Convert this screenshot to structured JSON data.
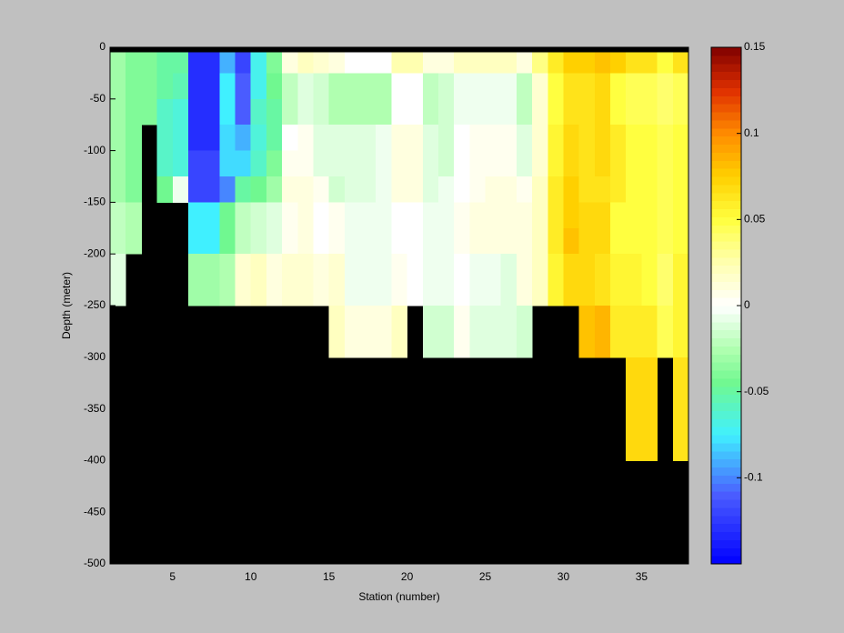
{
  "chart_data": {
    "type": "heatmap",
    "xlabel": "Station (number)",
    "ylabel": "Depth (meter)",
    "xlim": [
      1,
      38
    ],
    "ylim": [
      -500,
      0
    ],
    "xticks": [
      5,
      10,
      15,
      20,
      25,
      30,
      35
    ],
    "yticks": [
      0,
      -50,
      -100,
      -150,
      -200,
      -250,
      -300,
      -350,
      -400,
      -450,
      -500
    ],
    "x_edges": [
      1,
      2,
      3,
      4,
      5,
      6,
      7,
      8,
      9,
      10,
      11,
      12,
      13,
      14,
      15,
      16,
      17,
      18,
      19,
      20,
      21,
      22,
      23,
      24,
      25,
      26,
      27,
      28,
      29,
      30,
      31,
      32,
      33,
      34,
      35,
      36,
      37,
      38
    ],
    "y_edges": [
      -5,
      -25,
      -50,
      -75,
      -100,
      -125,
      -150,
      -175,
      -200,
      -225,
      -250,
      -275,
      -300,
      -325,
      -350,
      -375,
      -400
    ],
    "clim": [
      -0.15,
      0.15
    ],
    "cticks": [
      -0.1,
      -0.05,
      0,
      0.05,
      0.1,
      0.15
    ],
    "colormap": [
      {
        "value": -0.15,
        "color": "#0000ff"
      },
      {
        "value": -0.11,
        "color": "#4a5cff"
      },
      {
        "value": -0.075,
        "color": "#40f0ff"
      },
      {
        "value": -0.045,
        "color": "#70f890"
      },
      {
        "value": -0.025,
        "color": "#b0ffb0"
      },
      {
        "value": 0,
        "color": "#ffffff"
      },
      {
        "value": 0.025,
        "color": "#ffffb0"
      },
      {
        "value": 0.05,
        "color": "#ffff40"
      },
      {
        "value": 0.075,
        "color": "#ffd000"
      },
      {
        "value": 0.1,
        "color": "#ff8c00"
      },
      {
        "value": 0.125,
        "color": "#e03000"
      },
      {
        "value": 0.15,
        "color": "#800000"
      }
    ],
    "missing_color": "#000000",
    "z": [
      [
        -0.03,
        -0.03,
        -0.03,
        -0.03,
        -0.03,
        -0.03,
        -0.02,
        -0.02,
        -0.01,
        -0.01,
        null,
        null,
        null,
        null,
        null,
        null
      ],
      [
        -0.04,
        -0.04,
        -0.04,
        -0.04,
        -0.04,
        -0.04,
        -0.025,
        -0.025,
        null,
        null,
        null,
        null,
        null,
        null,
        null,
        null
      ],
      [
        -0.04,
        -0.04,
        -0.04,
        null,
        null,
        null,
        null,
        null,
        null,
        null,
        null,
        null,
        null,
        null,
        null,
        null
      ],
      [
        -0.05,
        -0.05,
        -0.06,
        -0.06,
        -0.06,
        -0.045,
        null,
        null,
        null,
        null,
        null,
        null,
        null,
        null,
        null,
        null
      ],
      [
        -0.05,
        -0.055,
        -0.065,
        -0.065,
        -0.065,
        -0.005,
        null,
        null,
        null,
        null,
        null,
        null,
        null,
        null,
        null,
        null
      ],
      [
        -0.13,
        -0.13,
        -0.13,
        -0.13,
        -0.12,
        -0.12,
        -0.075,
        -0.075,
        -0.03,
        -0.03,
        null,
        null,
        null,
        null,
        null,
        null
      ],
      [
        -0.13,
        -0.13,
        -0.13,
        -0.13,
        -0.12,
        -0.12,
        -0.075,
        -0.075,
        -0.03,
        -0.03,
        null,
        null,
        null,
        null,
        null,
        null
      ],
      [
        -0.09,
        -0.075,
        -0.075,
        -0.08,
        -0.08,
        -0.1,
        -0.045,
        -0.045,
        -0.025,
        -0.025,
        null,
        null,
        null,
        null,
        null,
        null
      ],
      [
        -0.12,
        -0.11,
        -0.11,
        -0.09,
        -0.08,
        -0.05,
        -0.02,
        -0.02,
        0.015,
        0.015,
        null,
        null,
        null,
        null,
        null,
        null
      ],
      [
        -0.07,
        -0.07,
        -0.06,
        -0.065,
        -0.06,
        -0.045,
        -0.015,
        -0.015,
        0.02,
        0.02,
        null,
        null,
        null,
        null,
        null,
        null
      ],
      [
        -0.04,
        -0.045,
        -0.05,
        -0.05,
        -0.04,
        -0.03,
        -0.01,
        -0.01,
        0.01,
        0.01,
        null,
        null,
        null,
        null,
        null,
        null
      ],
      [
        0.01,
        -0.02,
        -0.02,
        0,
        0.005,
        0.01,
        0.005,
        0.005,
        0.015,
        0.015,
        null,
        null,
        null,
        null,
        null,
        null
      ],
      [
        0.02,
        -0.01,
        -0.01,
        0.005,
        0.005,
        0.01,
        0.01,
        0.01,
        0.015,
        0.015,
        null,
        null,
        null,
        null,
        null,
        null
      ],
      [
        0.015,
        -0.015,
        -0.015,
        -0.01,
        -0.01,
        0.005,
        0,
        0,
        0.01,
        0.01,
        null,
        null,
        null,
        null,
        null,
        null
      ],
      [
        0.01,
        -0.025,
        -0.025,
        -0.01,
        -0.01,
        -0.015,
        0.005,
        0.005,
        0.015,
        0.015,
        0.02,
        0.02,
        null,
        null,
        null,
        null
      ],
      [
        0,
        -0.025,
        -0.025,
        -0.01,
        -0.01,
        -0.01,
        -0.005,
        -0.005,
        -0.005,
        -0.005,
        0.01,
        0.01,
        null,
        null,
        null,
        null
      ],
      [
        0,
        -0.025,
        -0.025,
        -0.01,
        -0.01,
        -0.01,
        -0.005,
        -0.005,
        -0.005,
        -0.005,
        0.01,
        0.01,
        null,
        null,
        null,
        null
      ],
      [
        0,
        -0.025,
        -0.025,
        -0.005,
        -0.005,
        -0.005,
        -0.005,
        -0.005,
        -0.005,
        -0.005,
        0.01,
        0.01,
        null,
        null,
        null,
        null
      ],
      [
        0.025,
        0,
        0,
        0.01,
        0.01,
        0.01,
        0,
        0,
        0.005,
        0.005,
        0.02,
        0.02,
        null,
        null,
        null,
        null
      ],
      [
        0.025,
        0,
        0,
        0.01,
        0.01,
        0.01,
        0,
        0,
        0,
        0,
        null,
        null,
        null,
        null,
        null,
        null
      ],
      [
        0.01,
        -0.02,
        -0.02,
        -0.01,
        -0.01,
        -0.01,
        -0.005,
        -0.005,
        -0.005,
        -0.005,
        -0.015,
        -0.015,
        null,
        null,
        null,
        null
      ],
      [
        0.01,
        -0.015,
        -0.015,
        -0.015,
        -0.015,
        -0.005,
        -0.005,
        -0.005,
        -0.005,
        -0.005,
        -0.015,
        -0.015,
        null,
        null,
        null,
        null
      ],
      [
        0.02,
        -0.005,
        -0.005,
        0,
        0,
        0,
        0.005,
        0.005,
        0,
        0,
        0.005,
        0.005,
        null,
        null,
        null,
        null
      ],
      [
        0.02,
        -0.005,
        -0.005,
        0.005,
        0.005,
        0.005,
        0.01,
        0.01,
        -0.005,
        -0.005,
        -0.01,
        -0.01,
        null,
        null,
        null,
        null
      ],
      [
        0.02,
        -0.005,
        -0.005,
        0.005,
        0.005,
        0.01,
        0.01,
        0.01,
        -0.005,
        -0.005,
        -0.01,
        -0.01,
        null,
        null,
        null,
        null
      ],
      [
        0.02,
        -0.005,
        -0.005,
        0.005,
        0.005,
        0.01,
        0.01,
        0.01,
        -0.01,
        -0.01,
        -0.01,
        -0.01,
        null,
        null,
        null,
        null
      ],
      [
        0.01,
        -0.02,
        -0.02,
        -0.01,
        -0.01,
        0.005,
        0.01,
        0.01,
        0.01,
        0.01,
        -0.015,
        -0.015,
        null,
        null,
        null,
        null
      ],
      [
        0.035,
        0.015,
        0.015,
        0.015,
        0.015,
        0.02,
        0.02,
        0.02,
        0.02,
        0.02,
        null,
        null,
        null,
        null,
        null,
        null
      ],
      [
        0.06,
        0.05,
        0.05,
        0.055,
        0.055,
        0.06,
        0.06,
        0.06,
        0.055,
        0.055,
        null,
        null,
        null,
        null,
        null,
        null
      ],
      [
        0.075,
        0.065,
        0.065,
        0.07,
        0.07,
        0.075,
        0.075,
        0.08,
        0.07,
        0.07,
        null,
        null,
        null,
        null,
        null,
        null
      ],
      [
        0.075,
        0.065,
        0.065,
        0.065,
        0.065,
        0.065,
        0.07,
        0.07,
        0.07,
        0.07,
        0.08,
        0.08,
        null,
        null,
        null,
        null
      ],
      [
        0.08,
        0.07,
        0.07,
        0.07,
        0.07,
        0.065,
        0.07,
        0.07,
        0.065,
        0.065,
        0.085,
        0.085,
        null,
        null,
        null,
        null
      ],
      [
        0.075,
        0.05,
        0.05,
        0.06,
        0.06,
        0.06,
        0.05,
        0.05,
        0.055,
        0.055,
        0.06,
        0.06,
        null,
        null,
        null,
        null
      ],
      [
        0.065,
        0.045,
        0.045,
        0.05,
        0.05,
        0.05,
        0.05,
        0.05,
        0.055,
        0.055,
        0.06,
        0.06,
        0.07,
        0.07,
        0.07,
        0.07
      ],
      [
        0.065,
        0.045,
        0.045,
        0.05,
        0.05,
        0.05,
        0.05,
        0.05,
        0.05,
        0.05,
        0.06,
        0.06,
        0.07,
        0.07,
        0.07,
        0.07
      ],
      [
        0.05,
        0.04,
        0.04,
        0.045,
        0.045,
        0.045,
        0.045,
        0.045,
        0.04,
        0.04,
        0.045,
        0.045,
        null,
        null,
        null,
        null
      ],
      [
        0.065,
        0.045,
        0.045,
        0.05,
        0.05,
        0.05,
        0.05,
        0.05,
        0.055,
        0.055,
        0.055,
        0.055,
        0.065,
        0.065,
        0.065,
        0.065
      ]
    ]
  }
}
